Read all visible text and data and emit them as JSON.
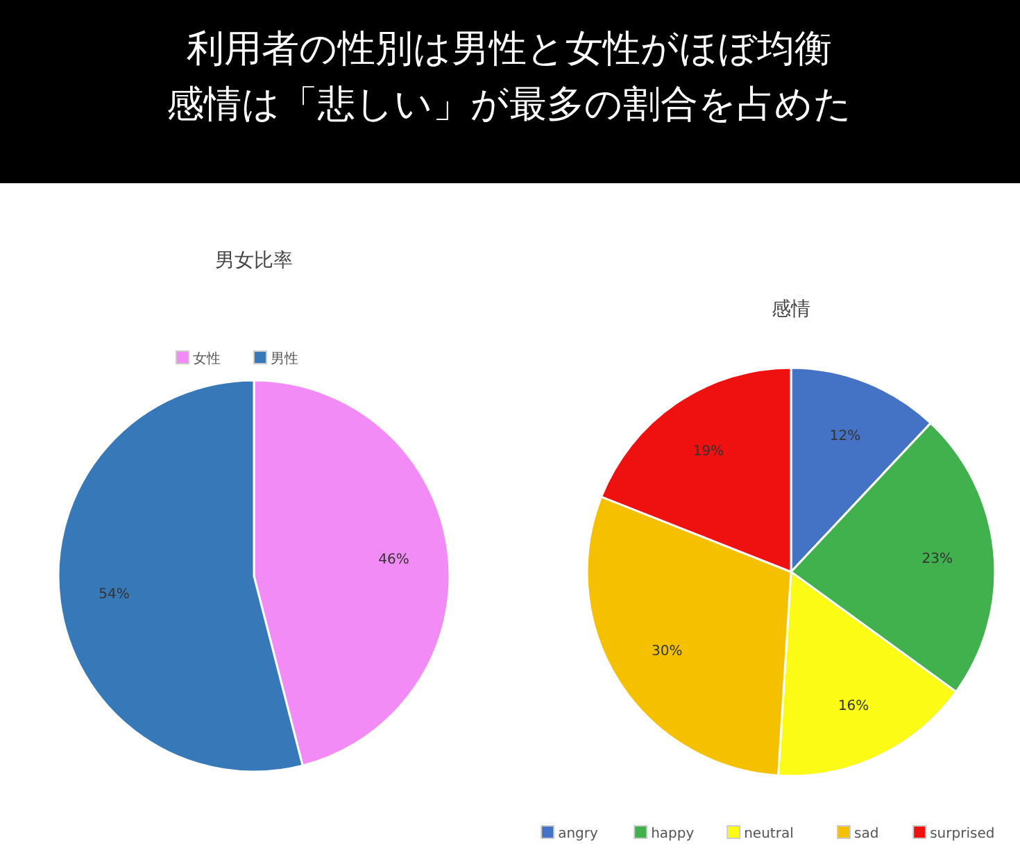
{
  "chart_data": [
    {
      "type": "pie",
      "title": "男女比率",
      "annotations": [
        "利用者の性別は男性と女性がほぼ均衡",
        "感情は「悲しい」が最多の割合を占めた"
      ],
      "categories": [
        "女性",
        "男性"
      ],
      "values": [
        46,
        54
      ],
      "colors": [
        "#f38bf7",
        "#3778b9"
      ],
      "legend": "top",
      "value_labels": [
        "46%",
        "54%"
      ]
    },
    {
      "type": "pie",
      "title": "感情",
      "categories": [
        "angry",
        "happy",
        "neutral",
        "sad",
        "surprised"
      ],
      "values": [
        12,
        23,
        16,
        30,
        19
      ],
      "colors": [
        "#4472c4",
        "#41b14e",
        "#fbfb15",
        "#f5c000",
        "#ef1010"
      ],
      "legend": "bottom",
      "value_labels": [
        "12%",
        "23%",
        "16%",
        "30%",
        "19%"
      ]
    }
  ]
}
